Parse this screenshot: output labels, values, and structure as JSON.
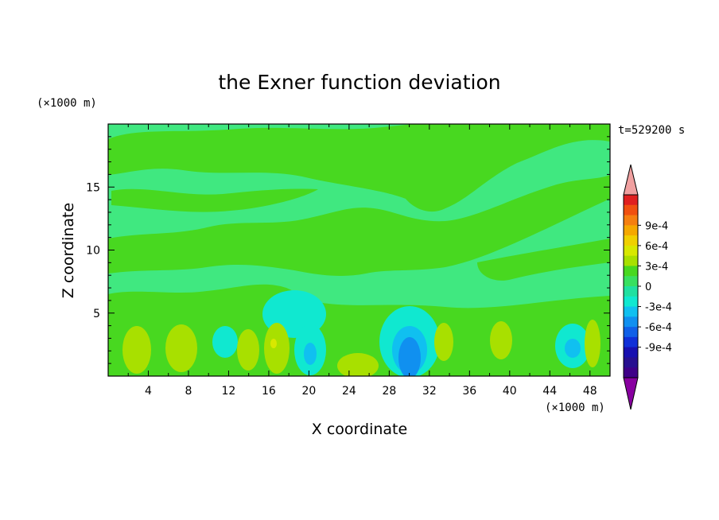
{
  "chart_data": {
    "type": "heatmap",
    "title": "the Exner function deviation",
    "xlabel": "X coordinate",
    "ylabel": "Z coordinate",
    "x_unit": "(×1000 m)",
    "y_unit": "(×1000 m)",
    "time_label": "t=529200 s",
    "xlim": [
      0,
      50
    ],
    "ylim": [
      0,
      20
    ],
    "x_ticks": [
      "4",
      "8",
      "12",
      "16",
      "20",
      "24",
      "28",
      "32",
      "36",
      "40",
      "44",
      "48"
    ],
    "y_ticks": [
      "5",
      "10",
      "15"
    ],
    "colorbar": {
      "tick_labels": [
        "9e-4",
        "6e-4",
        "3e-4",
        "0",
        "-3e-4",
        "-6e-4",
        "-9e-4"
      ],
      "levels": [
        0.0009,
        0.0006,
        0.0003,
        0,
        -0.0003,
        -0.0006,
        -0.0009
      ],
      "colors_top_to_bottom": [
        "#e02020",
        "#f05010",
        "#f57f10",
        "#f5a800",
        "#f0d000",
        "#d8e800",
        "#a8e000",
        "#48d820",
        "#38e060",
        "#20e0a0",
        "#10e8d0",
        "#10c0f0",
        "#1090f0",
        "#1060e8",
        "#1030d8",
        "#1810b0",
        "#281090",
        "#400088"
      ],
      "over_color": "#f0a0a0",
      "under_color": "#8800a0"
    },
    "background_color": "#40e880",
    "bands": [
      {
        "color": "#48d820",
        "desc": "positive deviation band near z≈15-18 km"
      },
      {
        "color": "#48d820",
        "desc": "positive deviation band near z≈8-12 km"
      },
      {
        "color": "#a8e000",
        "desc": "low-level positive cells"
      },
      {
        "color": "#10e8d0",
        "desc": "low-level negative cells"
      },
      {
        "color": "#10c0f0",
        "desc": "strongest negative cell near x≈30 km"
      }
    ]
  }
}
